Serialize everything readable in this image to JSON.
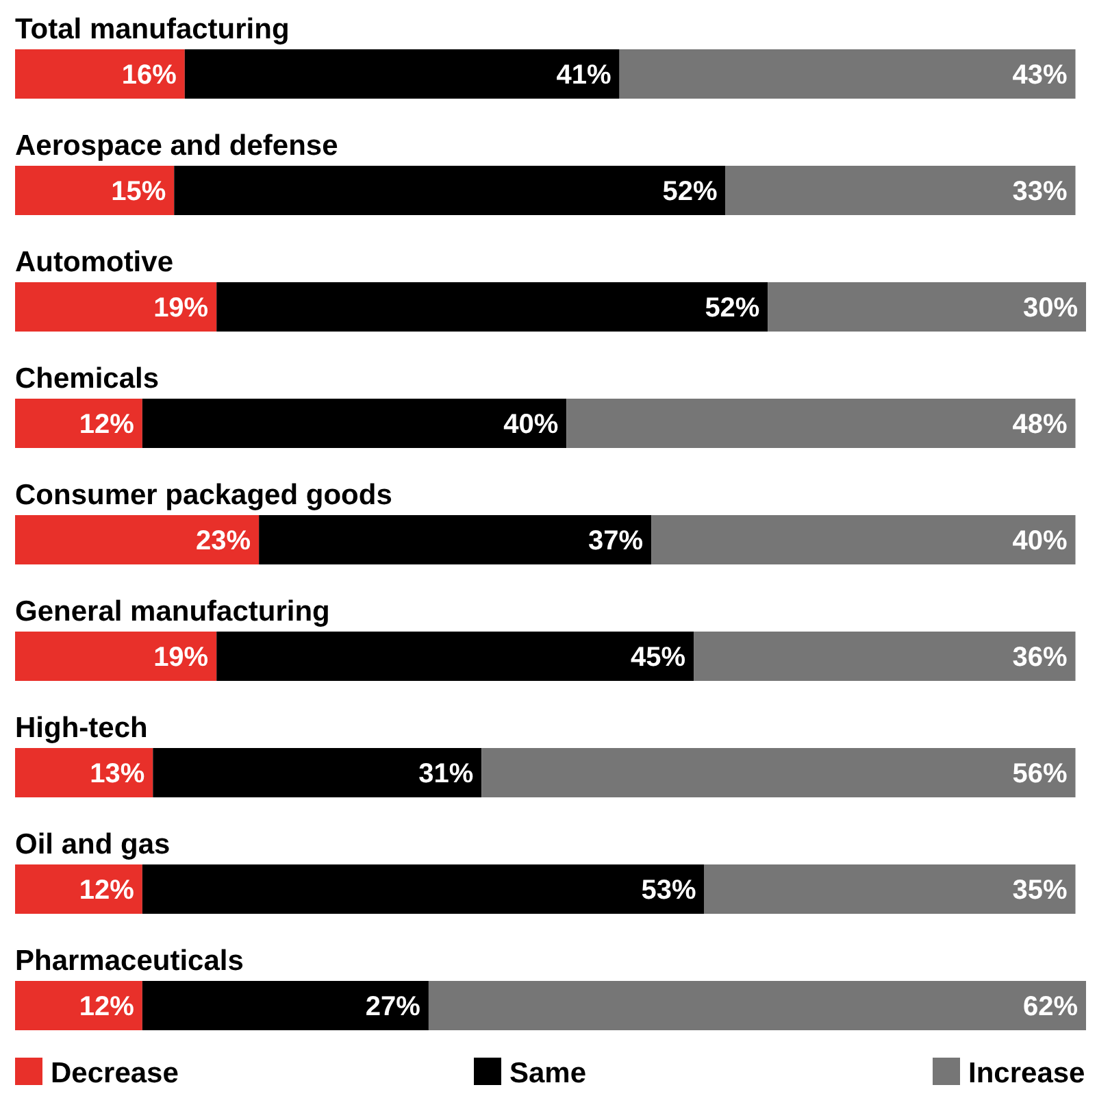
{
  "chart_data": {
    "type": "bar",
    "orientation": "horizontal",
    "stacked": true,
    "xlim": [
      0,
      101
    ],
    "legend": "bottom",
    "categories": [
      "Total manufacturing",
      "Aerospace and defense",
      "Automotive",
      "Chemicals",
      "Consumer packaged goods",
      "General manufacturing",
      "High-tech",
      "Oil and gas",
      "Pharmaceuticals"
    ],
    "series": [
      {
        "name": "Decrease",
        "color": "#e8302a",
        "values": [
          16,
          15,
          19,
          12,
          23,
          19,
          13,
          12,
          12
        ],
        "value_labels": [
          "16%",
          "15%",
          "19%",
          "12%",
          "23%",
          "19%",
          "13%",
          "12%",
          "12%"
        ]
      },
      {
        "name": "Same",
        "color": "#000000",
        "values": [
          41,
          52,
          52,
          40,
          37,
          45,
          31,
          53,
          27
        ],
        "value_labels": [
          "41%",
          "52%",
          "52%",
          "40%",
          "37%",
          "45%",
          "31%",
          "53%",
          "27%"
        ]
      },
      {
        "name": "Increase",
        "color": "#767676",
        "values": [
          43,
          33,
          30,
          48,
          40,
          36,
          56,
          35,
          62
        ],
        "value_labels": [
          "43%",
          "33%",
          "30%",
          "48%",
          "40%",
          "36%",
          "56%",
          "35%",
          "62%"
        ]
      }
    ]
  }
}
